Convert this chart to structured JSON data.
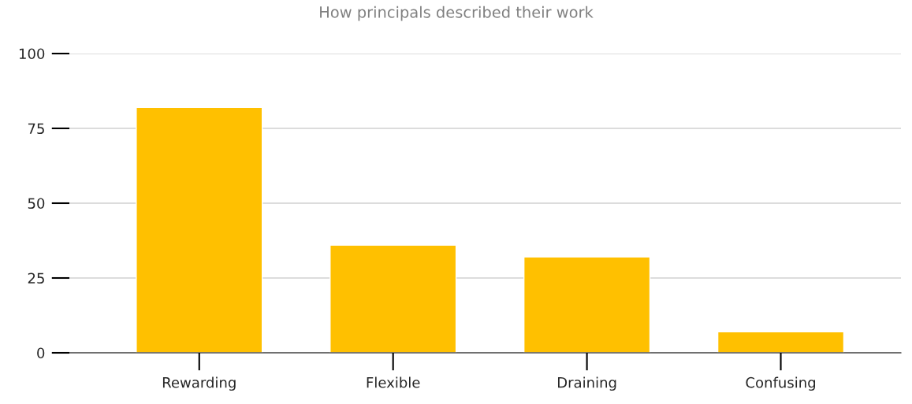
{
  "chart_data": {
    "type": "bar",
    "title": "How principals described their work",
    "categories": [
      "Rewarding",
      "Flexible",
      "Draining",
      "Confusing"
    ],
    "values": [
      82,
      36,
      32,
      7
    ],
    "color": "#ffc000",
    "ylim": [
      0,
      100
    ],
    "yticks": [
      0,
      25,
      50,
      75,
      100
    ],
    "grid": "y",
    "legend": false
  }
}
